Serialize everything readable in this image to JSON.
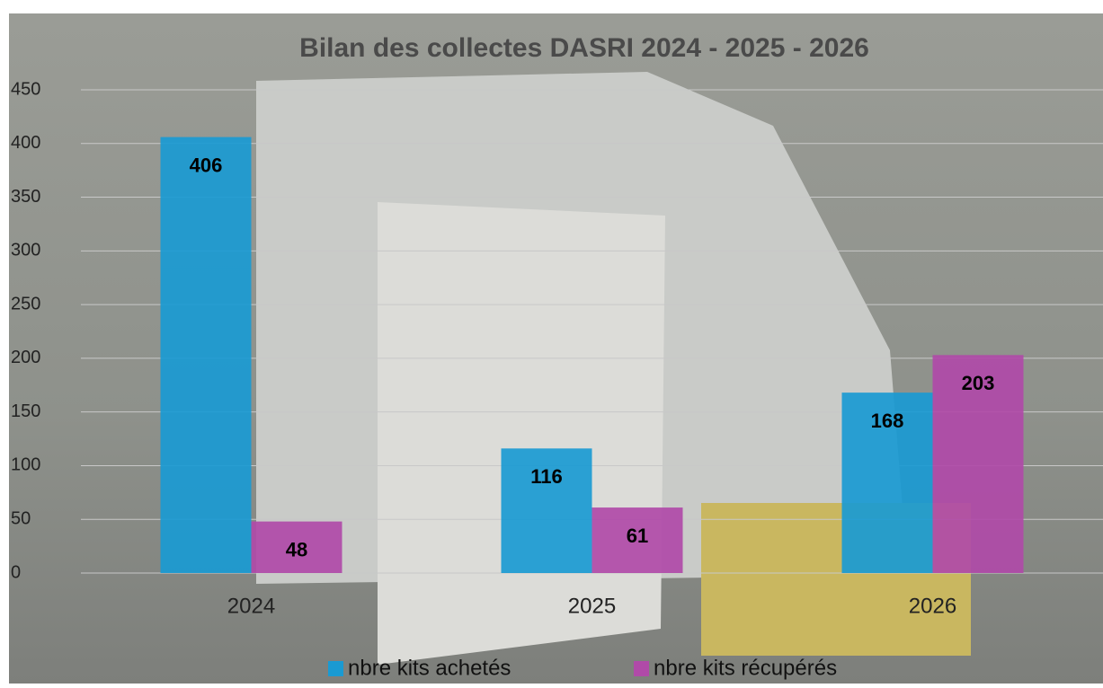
{
  "chart_data": {
    "type": "bar",
    "title": "Bilan des collectes DASRI 2024 -  2025 - 2026",
    "categories": [
      "2024",
      "2025",
      "2026"
    ],
    "series": [
      {
        "name": "nbre kits achetés",
        "color": "#1a9ad2",
        "values": [
          406,
          116,
          168
        ]
      },
      {
        "name": "nbre kits récupérés",
        "color": "#b04aa8",
        "values": [
          48,
          61,
          203
        ]
      }
    ],
    "ylim": [
      0,
      450
    ],
    "yticks": [
      0,
      50,
      100,
      150,
      200,
      250,
      300,
      350,
      400,
      450
    ],
    "grid": true,
    "legend": "bottom"
  }
}
